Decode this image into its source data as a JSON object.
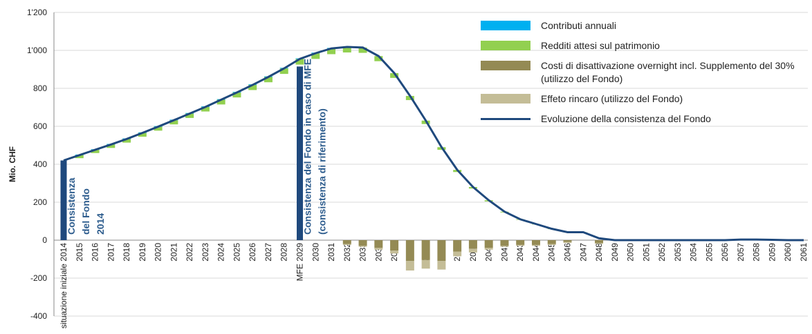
{
  "chart_data": {
    "type": "bar",
    "y_label": "Mio. CHF",
    "categories": [
      "situazione iniziale 2014",
      "2015",
      "2016",
      "2017",
      "2018",
      "2019",
      "2020",
      "2021",
      "2022",
      "2023",
      "2024",
      "2025",
      "2026",
      "2027",
      "2028",
      "MFE 2029",
      "2030",
      "2031",
      "2032",
      "2033",
      "2034",
      "2035",
      "2036",
      "2037",
      "2038",
      "2039",
      "2040",
      "2041",
      "2042",
      "2043",
      "2044",
      "2045",
      "2046",
      "2047",
      "2048",
      "2049",
      "2050",
      "2051",
      "2052",
      "2053",
      "2054",
      "2055",
      "2056",
      "2057",
      "2058",
      "2059",
      "2060",
      "2061"
    ],
    "ylim": [
      -400,
      1200
    ],
    "yticks": [
      -400,
      -200,
      0,
      200,
      400,
      600,
      800,
      {
        "value": 1000,
        "label": "1'000"
      },
      {
        "value": 1200,
        "label": "1'200"
      }
    ],
    "grid": true,
    "series": [
      {
        "name": "Contributi annuali",
        "color": "#00b0f0",
        "values": [
          0,
          3,
          3,
          3,
          3,
          3,
          3,
          3,
          3,
          3,
          3,
          3,
          3,
          3,
          3,
          3,
          3,
          3,
          0,
          0,
          0,
          0,
          0,
          0,
          0,
          0,
          0,
          0,
          0,
          0,
          0,
          0,
          0,
          0,
          0,
          0,
          0,
          0,
          0,
          0,
          0,
          0,
          0,
          0,
          0,
          0,
          0,
          0
        ]
      },
      {
        "name": "Redditi attesi sul patrimonio",
        "color": "#92d050",
        "values": [
          0,
          16,
          17,
          18,
          19,
          20,
          21,
          22,
          23,
          24,
          25,
          26,
          27,
          28,
          29,
          30,
          30,
          30,
          29,
          28,
          27,
          25,
          22,
          18,
          14,
          11,
          8,
          6,
          4,
          3,
          2,
          2,
          1,
          1,
          0,
          0,
          0,
          0,
          0,
          0,
          0,
          0,
          0,
          0,
          0,
          0,
          0,
          0
        ]
      },
      {
        "name": "Costi di disattivazione overnight incl. Supplemento del 30% (utilizzo del Fondo)",
        "color": "#948a54",
        "values": [
          0,
          0,
          0,
          0,
          0,
          0,
          0,
          0,
          0,
          0,
          0,
          0,
          0,
          0,
          0,
          0,
          0,
          0,
          -20,
          -30,
          -40,
          -55,
          -110,
          -105,
          -110,
          -60,
          -45,
          -40,
          -30,
          -25,
          -25,
          -20,
          -10,
          0,
          -15,
          0,
          0,
          0,
          0,
          0,
          0,
          0,
          0,
          0,
          0,
          0,
          0,
          0
        ]
      },
      {
        "name": "Effeto rincaro (utilizzo del Fondo)",
        "color": "#c4bd97",
        "values": [
          0,
          0,
          0,
          0,
          0,
          0,
          0,
          0,
          0,
          0,
          0,
          0,
          0,
          0,
          0,
          0,
          0,
          0,
          -5,
          -5,
          -10,
          -15,
          -50,
          -45,
          -45,
          -25,
          -20,
          -10,
          -5,
          -5,
          -5,
          -5,
          -5,
          0,
          -5,
          0,
          0,
          0,
          0,
          0,
          0,
          0,
          0,
          0,
          0,
          0,
          0,
          0
        ]
      },
      {
        "name": "Evoluzione della consistenza del Fondo",
        "color": "#1f497d",
        "type": "line",
        "values": [
          420,
          448,
          476,
          504,
          533,
          565,
          598,
          632,
          667,
          702,
          740,
          778,
          818,
          860,
          905,
          955,
          985,
          1010,
          1018,
          1015,
          970,
          880,
          760,
          630,
          490,
          370,
          280,
          210,
          150,
          110,
          85,
          60,
          42,
          42,
          10,
          0,
          0,
          0,
          0,
          0,
          0,
          0,
          0,
          3,
          3,
          2,
          0,
          0
        ]
      }
    ],
    "fund_bars": {
      "color": "#1f497d",
      "values": [
        420,
        null,
        null,
        null,
        null,
        null,
        null,
        null,
        null,
        null,
        null,
        null,
        null,
        null,
        null,
        915,
        null,
        null,
        null,
        null,
        null,
        null,
        null,
        null,
        null,
        null,
        null,
        null,
        null,
        null,
        null,
        null,
        null,
        null,
        null,
        null,
        null,
        null,
        null,
        null,
        null,
        null,
        null,
        null,
        null,
        null,
        null,
        null
      ]
    },
    "annotations": [
      {
        "lines": [
          "Consistenza",
          "del Fondo",
          "2014"
        ]
      },
      {
        "lines": [
          "Consistenza del Fondo in caso di MFE",
          "(consistenza di riferimento)"
        ]
      }
    ]
  }
}
